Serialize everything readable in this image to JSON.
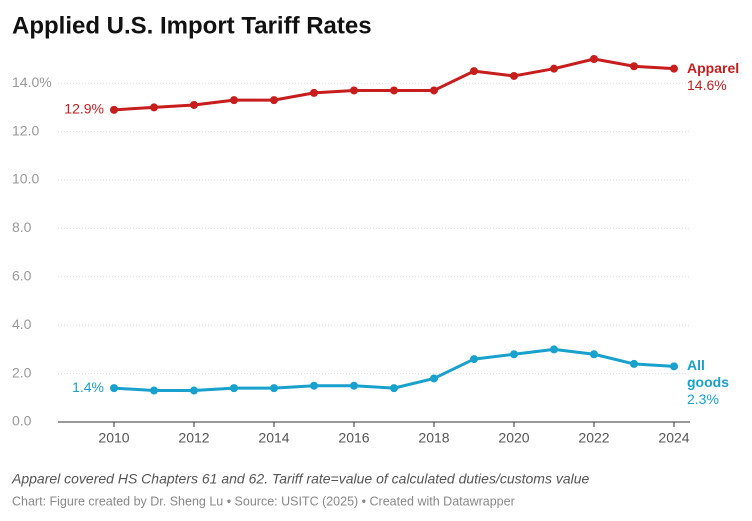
{
  "chart_data": {
    "type": "line",
    "title": "Applied U.S. Import Tariff Rates",
    "note": "Apparel covered HS Chapters 61 and 62. Tariff rate=value of calculated duties/customs value",
    "source": "Chart: Figure created by Dr. Sheng Lu • Source: USITC (2025) • Created with Datawrapper",
    "x": [
      2010,
      2011,
      2012,
      2013,
      2014,
      2015,
      2016,
      2017,
      2018,
      2019,
      2020,
      2021,
      2022,
      2023,
      2024
    ],
    "series": [
      {
        "name": "Apparel",
        "color": "#c71e1d",
        "values": [
          12.9,
          13.0,
          13.1,
          13.3,
          13.3,
          13.6,
          13.7,
          13.7,
          13.7,
          14.5,
          14.3,
          14.6,
          15.0,
          14.7,
          14.6
        ],
        "value_labels": [
          "12.9%",
          null,
          null,
          null,
          null,
          null,
          null,
          null,
          null,
          null,
          null,
          null,
          null,
          null,
          "14.6%"
        ]
      },
      {
        "name": "All goods",
        "color": "#18a1cd",
        "values": [
          1.4,
          1.3,
          1.3,
          1.4,
          1.4,
          1.5,
          1.5,
          1.4,
          1.8,
          2.6,
          2.8,
          3.0,
          2.8,
          2.4,
          2.3
        ],
        "value_labels": [
          "1.4%",
          null,
          null,
          null,
          null,
          null,
          null,
          null,
          null,
          null,
          null,
          null,
          null,
          null,
          "2.3%"
        ]
      }
    ],
    "xlim": [
      2008.6,
      2024.4
    ],
    "xticks": [
      2010,
      2012,
      2014,
      2016,
      2018,
      2020,
      2022,
      2024
    ],
    "ylim": [
      0,
      15
    ],
    "yticks": [
      {
        "value": 0,
        "label": "0.0"
      },
      {
        "value": 2,
        "label": "2.0"
      },
      {
        "value": 4,
        "label": "4.0"
      },
      {
        "value": 6,
        "label": "6.0"
      },
      {
        "value": 8,
        "label": "8.0"
      },
      {
        "value": 10,
        "label": "10.0"
      },
      {
        "value": 12,
        "label": "12.0"
      },
      {
        "value": 14,
        "label": "14.0%"
      }
    ],
    "grid": true
  }
}
